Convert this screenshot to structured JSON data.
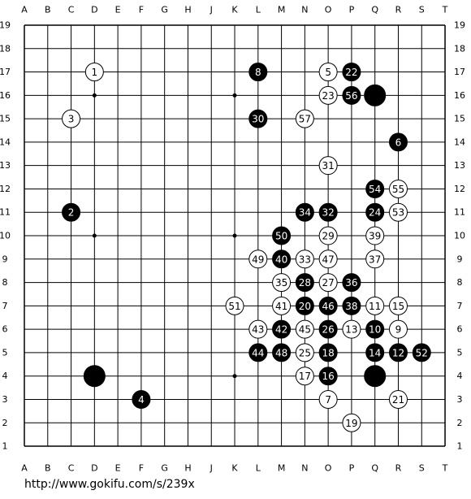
{
  "columns": [
    "A",
    "B",
    "C",
    "D",
    "E",
    "F",
    "G",
    "H",
    "J",
    "K",
    "L",
    "M",
    "N",
    "O",
    "P",
    "Q",
    "R",
    "S",
    "T"
  ],
  "rows": [
    19,
    18,
    17,
    16,
    15,
    14,
    13,
    12,
    11,
    10,
    9,
    8,
    7,
    6,
    5,
    4,
    3,
    2,
    1
  ],
  "stones": [
    {
      "color": "white",
      "x": "D",
      "y": 17,
      "label": "1"
    },
    {
      "color": "black",
      "x": "C",
      "y": 11,
      "label": "2"
    },
    {
      "color": "white",
      "x": "C",
      "y": 15,
      "label": "3"
    },
    {
      "color": "black",
      "x": "F",
      "y": 3,
      "label": "4"
    },
    {
      "color": "white",
      "x": "O",
      "y": 17,
      "label": "5"
    },
    {
      "color": "black",
      "x": "R",
      "y": 14,
      "label": "6"
    },
    {
      "color": "white",
      "x": "O",
      "y": 3,
      "label": "7"
    },
    {
      "color": "black",
      "x": "L",
      "y": 17,
      "label": "8"
    },
    {
      "color": "white",
      "x": "R",
      "y": 6,
      "label": "9"
    },
    {
      "color": "black",
      "x": "Q",
      "y": 6,
      "label": "10"
    },
    {
      "color": "white",
      "x": "Q",
      "y": 7,
      "label": "11"
    },
    {
      "color": "black",
      "x": "R",
      "y": 5,
      "label": "12"
    },
    {
      "color": "white",
      "x": "P",
      "y": 6,
      "label": "13"
    },
    {
      "color": "black",
      "x": "Q",
      "y": 5,
      "label": "14"
    },
    {
      "color": "white",
      "x": "R",
      "y": 7,
      "label": "15"
    },
    {
      "color": "black",
      "x": "O",
      "y": 4,
      "label": "16"
    },
    {
      "color": "white",
      "x": "N",
      "y": 4,
      "label": "17"
    },
    {
      "color": "black",
      "x": "O",
      "y": 5,
      "label": "18"
    },
    {
      "color": "white",
      "x": "P",
      "y": 2,
      "label": "19"
    },
    {
      "color": "black",
      "x": "N",
      "y": 7,
      "label": "20"
    },
    {
      "color": "white",
      "x": "R",
      "y": 3,
      "label": "21"
    },
    {
      "color": "black",
      "x": "P",
      "y": 17,
      "label": "22"
    },
    {
      "color": "white",
      "x": "O",
      "y": 16,
      "label": "23"
    },
    {
      "color": "black",
      "x": "Q",
      "y": 11,
      "label": "24"
    },
    {
      "color": "white",
      "x": "N",
      "y": 5,
      "label": "25"
    },
    {
      "color": "black",
      "x": "O",
      "y": 6,
      "label": "26"
    },
    {
      "color": "white",
      "x": "O",
      "y": 8,
      "label": "27"
    },
    {
      "color": "black",
      "x": "N",
      "y": 8,
      "label": "28"
    },
    {
      "color": "white",
      "x": "O",
      "y": 10,
      "label": "29"
    },
    {
      "color": "black",
      "x": "L",
      "y": 15,
      "label": "30"
    },
    {
      "color": "white",
      "x": "O",
      "y": 13,
      "label": "31"
    },
    {
      "color": "black",
      "x": "O",
      "y": 11,
      "label": "32"
    },
    {
      "color": "white",
      "x": "N",
      "y": 9,
      "label": "33"
    },
    {
      "color": "black",
      "x": "N",
      "y": 11,
      "label": "34"
    },
    {
      "color": "white",
      "x": "M",
      "y": 8,
      "label": "35"
    },
    {
      "color": "black",
      "x": "P",
      "y": 8,
      "label": "36"
    },
    {
      "color": "white",
      "x": "Q",
      "y": 9,
      "label": "37"
    },
    {
      "color": "black",
      "x": "P",
      "y": 7,
      "label": "38"
    },
    {
      "color": "white",
      "x": "Q",
      "y": 10,
      "label": "39"
    },
    {
      "color": "black",
      "x": "M",
      "y": 9,
      "label": "40"
    },
    {
      "color": "white",
      "x": "M",
      "y": 7,
      "label": "41"
    },
    {
      "color": "black",
      "x": "M",
      "y": 6,
      "label": "42"
    },
    {
      "color": "white",
      "x": "L",
      "y": 6,
      "label": "43"
    },
    {
      "color": "black",
      "x": "L",
      "y": 5,
      "label": "44"
    },
    {
      "color": "white",
      "x": "N",
      "y": 6,
      "label": "45"
    },
    {
      "color": "black",
      "x": "O",
      "y": 7,
      "label": "46"
    },
    {
      "color": "white",
      "x": "O",
      "y": 9,
      "label": "47"
    },
    {
      "color": "black",
      "x": "M",
      "y": 5,
      "label": "48"
    },
    {
      "color": "white",
      "x": "L",
      "y": 9,
      "label": "49"
    },
    {
      "color": "black",
      "x": "M",
      "y": 10,
      "label": "50"
    },
    {
      "color": "white",
      "x": "K",
      "y": 7,
      "label": "51"
    },
    {
      "color": "black",
      "x": "S",
      "y": 5,
      "label": "52"
    },
    {
      "color": "white",
      "x": "R",
      "y": 11,
      "label": "53"
    },
    {
      "color": "black",
      "x": "Q",
      "y": 12,
      "label": "54"
    },
    {
      "color": "white",
      "x": "R",
      "y": 12,
      "label": "55"
    },
    {
      "color": "black",
      "x": "P",
      "y": 16,
      "label": "56"
    },
    {
      "color": "white",
      "x": "N",
      "y": 15,
      "label": "57"
    },
    {
      "color": "black",
      "x": "Q",
      "y": 16
    },
    {
      "color": "black",
      "x": "D",
      "y": 4
    },
    {
      "color": "black",
      "x": "Q",
      "y": 4
    }
  ],
  "url": "http://www.gokifu.com/s/239x"
}
